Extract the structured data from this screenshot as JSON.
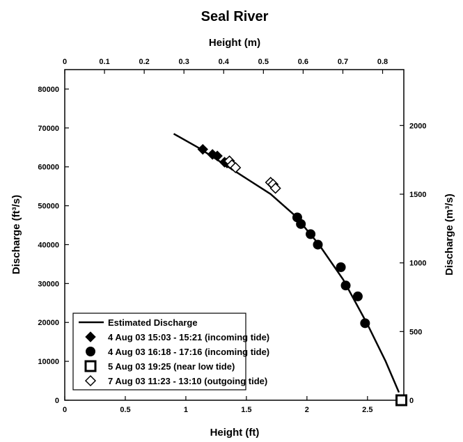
{
  "chart_data": {
    "type": "scatter",
    "title": "Seal River",
    "xlabel": "Height (ft)",
    "x2label": "Height (m)",
    "ylabel": "Discharge (ft³/s)",
    "y2label": "Discharge (m³/s)",
    "xlim": [
      0,
      2.8
    ],
    "ylim": [
      0,
      85000
    ],
    "x2lim": [
      0,
      0.8534
    ],
    "y2lim": [
      0,
      2407
    ],
    "x_ticks": [
      "0",
      "0.5",
      "1",
      "1.5",
      "2",
      "2.5"
    ],
    "x2_ticks": [
      "0",
      "0.1",
      "0.2",
      "0.3",
      "0.4",
      "0.5",
      "0.6",
      "0.7",
      "0.8"
    ],
    "y_ticks": [
      "0",
      "10000",
      "20000",
      "30000",
      "40000",
      "50000",
      "60000",
      "70000",
      "80000"
    ],
    "y2_ticks": [
      "0",
      "500",
      "1000",
      "1500",
      "2000"
    ],
    "grid": false,
    "legend_position": "bottom-left",
    "series": [
      {
        "name": "Estimated Discharge",
        "marker": "line",
        "x": [
          0.9,
          1.1,
          1.3,
          1.5,
          1.7,
          1.9,
          2.1,
          2.3,
          2.5,
          2.65,
          2.76
        ],
        "y": [
          68500,
          65000,
          61000,
          57000,
          53000,
          47500,
          40000,
          31000,
          19500,
          10000,
          2000
        ]
      },
      {
        "name": "4 Aug 03 15:03 - 15:21 (incoming tide)",
        "marker": "filled-diamond",
        "x": [
          1.14,
          1.22,
          1.26,
          1.32,
          1.34
        ],
        "y": [
          64500,
          63200,
          62800,
          61200,
          61000
        ]
      },
      {
        "name": "4 Aug 03 16:18 - 17:16 (incoming tide)",
        "marker": "filled-circle",
        "x": [
          1.92,
          1.95,
          2.03,
          2.09,
          2.28,
          2.32,
          2.42,
          2.48
        ],
        "y": [
          47000,
          45300,
          42700,
          40000,
          34200,
          29500,
          26700,
          19800
        ]
      },
      {
        "name": "5 Aug 03 19:25 (near low tide)",
        "marker": "open-square",
        "x": [
          2.78
        ],
        "y": [
          0
        ]
      },
      {
        "name": "7 Aug 03 11:23 - 13:10 (outgoing tide)",
        "marker": "open-diamond",
        "x": [
          1.36,
          1.38,
          1.41,
          1.7,
          1.72,
          1.74
        ],
        "y": [
          61500,
          60500,
          59800,
          56000,
          55500,
          54500
        ]
      }
    ]
  }
}
